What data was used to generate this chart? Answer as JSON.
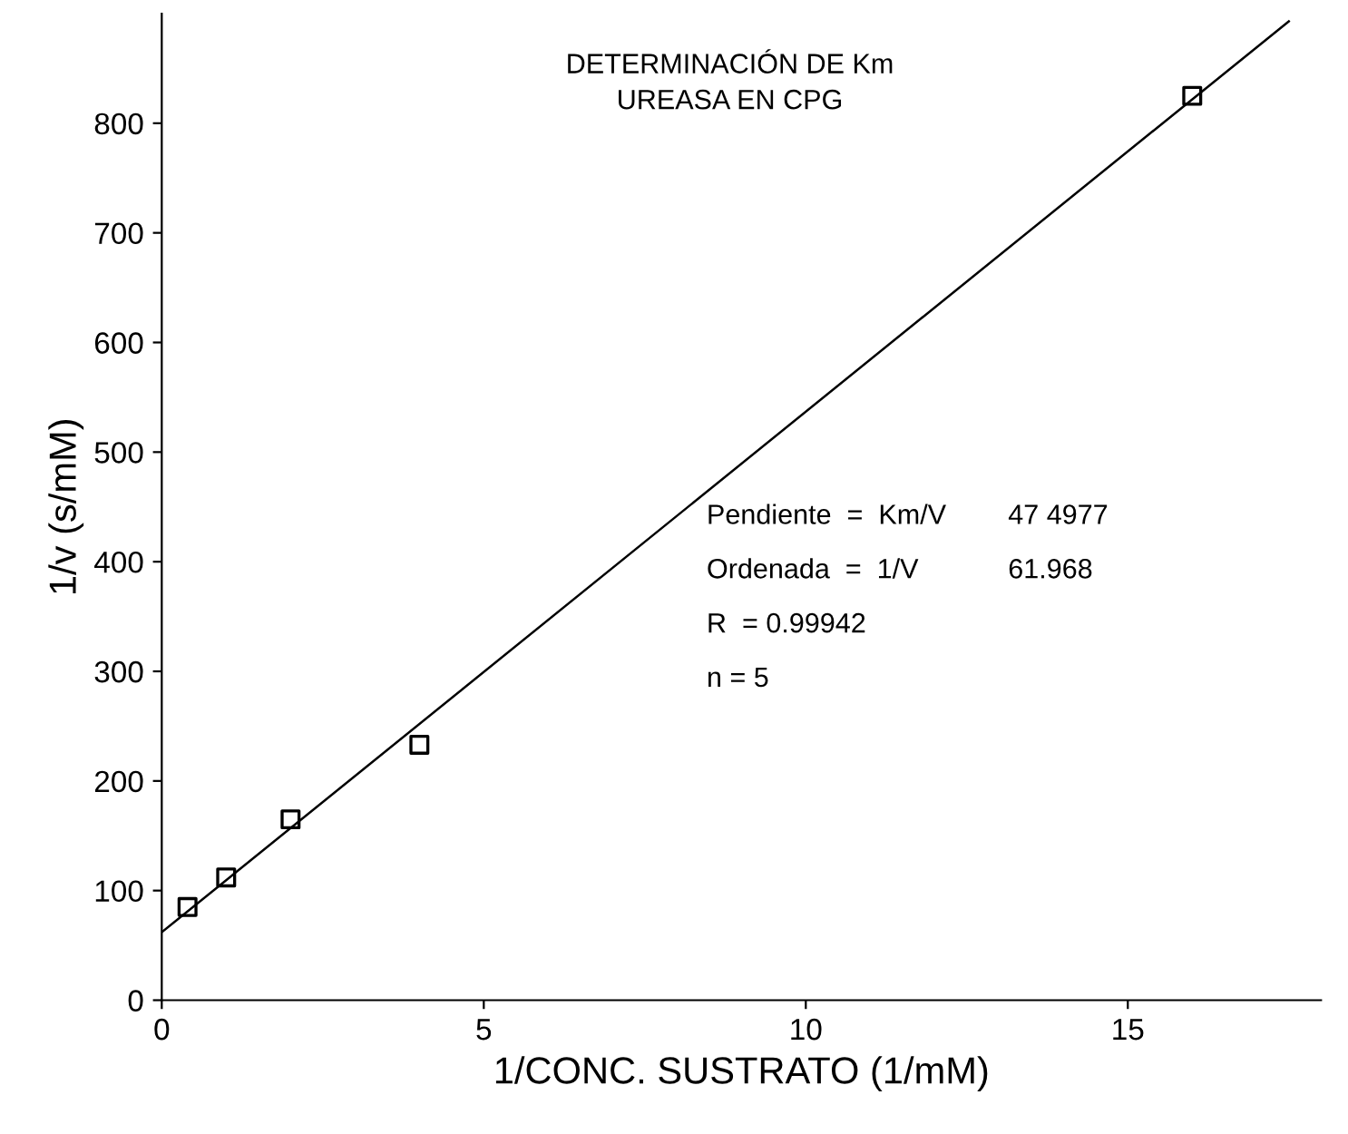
{
  "chart_data": {
    "type": "scatter",
    "title": "DETERMINACIÓN DE Km\nUREASA EN CPG",
    "xlabel": "1/CONC. SUSTRATO (1/mM)",
    "ylabel": "1/v (s/mM)",
    "series": [
      {
        "color": "#000000",
        "marker": "square",
        "x": [
          0.4,
          1,
          2,
          4,
          16
        ],
        "values": [
          85,
          112,
          165,
          233,
          825
        ]
      },
      {
        "type": "line",
        "color": "#000000",
        "marker": "none",
        "line_style": "solid",
        "x": [
          0,
          17.5
        ],
        "values": [
          62,
          893
        ]
      }
    ],
    "xlim": [
      0,
      18
    ],
    "ylim": [
      0,
      900
    ],
    "xticks": [
      0,
      5,
      10,
      15
    ],
    "yticks": [
      0,
      100,
      200,
      300,
      400,
      500,
      600,
      700,
      800
    ],
    "annotations": [
      "Pendiente  =  Km/V",
      "47 4977",
      "Ordenada  =  1/V",
      "61.968",
      "R  = 0.99942",
      "n = 5"
    ],
    "grid": false,
    "legend": false
  }
}
